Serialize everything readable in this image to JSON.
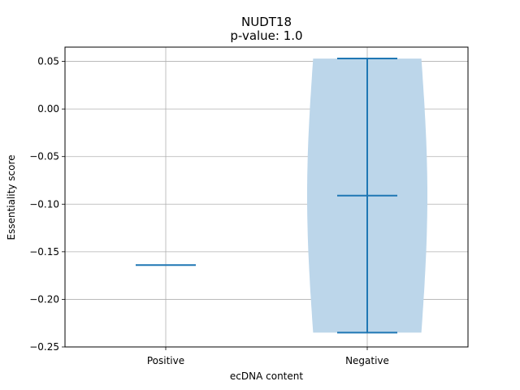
{
  "chart_data": {
    "type": "violin",
    "title_lines": [
      "NUDT18",
      "p-value: 1.0"
    ],
    "xlabel": "ecDNA content",
    "ylabel": "Essentiality score",
    "categories": [
      "Positive",
      "Negative"
    ],
    "ylim": [
      -0.25,
      0.065
    ],
    "yticks": [
      -0.25,
      -0.2,
      -0.15,
      -0.1,
      -0.05,
      0.0,
      0.05
    ],
    "ytick_labels": [
      "−0.25",
      "−0.20",
      "−0.15",
      "−0.10",
      "−0.05",
      "0.00",
      "0.05"
    ],
    "grid": true,
    "violins": [
      {
        "category": "Positive",
        "min": -0.164,
        "median": -0.164,
        "max": -0.164,
        "has_body": false
      },
      {
        "category": "Negative",
        "min": -0.235,
        "median": -0.091,
        "max": 0.053,
        "has_body": true
      }
    ],
    "colors": {
      "line": "#1f77b4",
      "body": "#bcd6ea",
      "grid": "#b0b0b0"
    }
  }
}
